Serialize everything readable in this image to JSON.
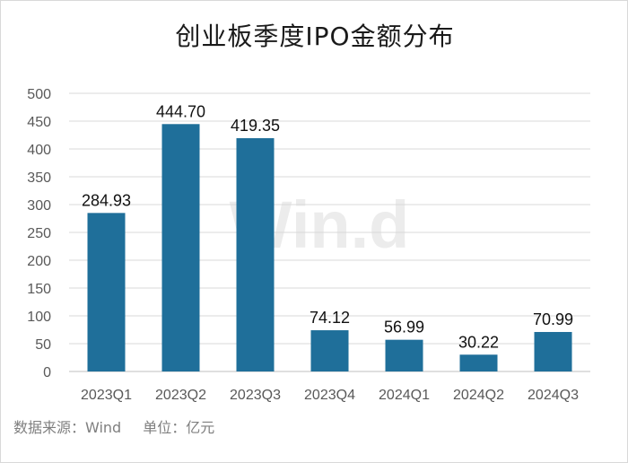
{
  "chart_data": {
    "type": "bar",
    "title": "创业板季度IPO金额分布",
    "categories": [
      "2023Q1",
      "2023Q2",
      "2023Q3",
      "2023Q4",
      "2024Q1",
      "2024Q2",
      "2024Q3"
    ],
    "values": [
      284.93,
      444.7,
      419.35,
      74.12,
      56.99,
      30.22,
      70.99
    ],
    "data_labels": [
      "284.93",
      "444.70",
      "419.35",
      "74.12",
      "56.99",
      "30.22",
      "70.99"
    ],
    "yticks": [
      "0",
      "50",
      "100",
      "150",
      "200",
      "250",
      "300",
      "350",
      "400",
      "450",
      "500"
    ],
    "ylim": [
      0,
      500
    ],
    "grid": true,
    "legend": false,
    "bar_color": "#1f6f9a",
    "xlabel": "",
    "ylabel": ""
  },
  "watermark": "Wind",
  "footer": {
    "source": "数据来源：Wind",
    "unit": "单位：亿元"
  }
}
